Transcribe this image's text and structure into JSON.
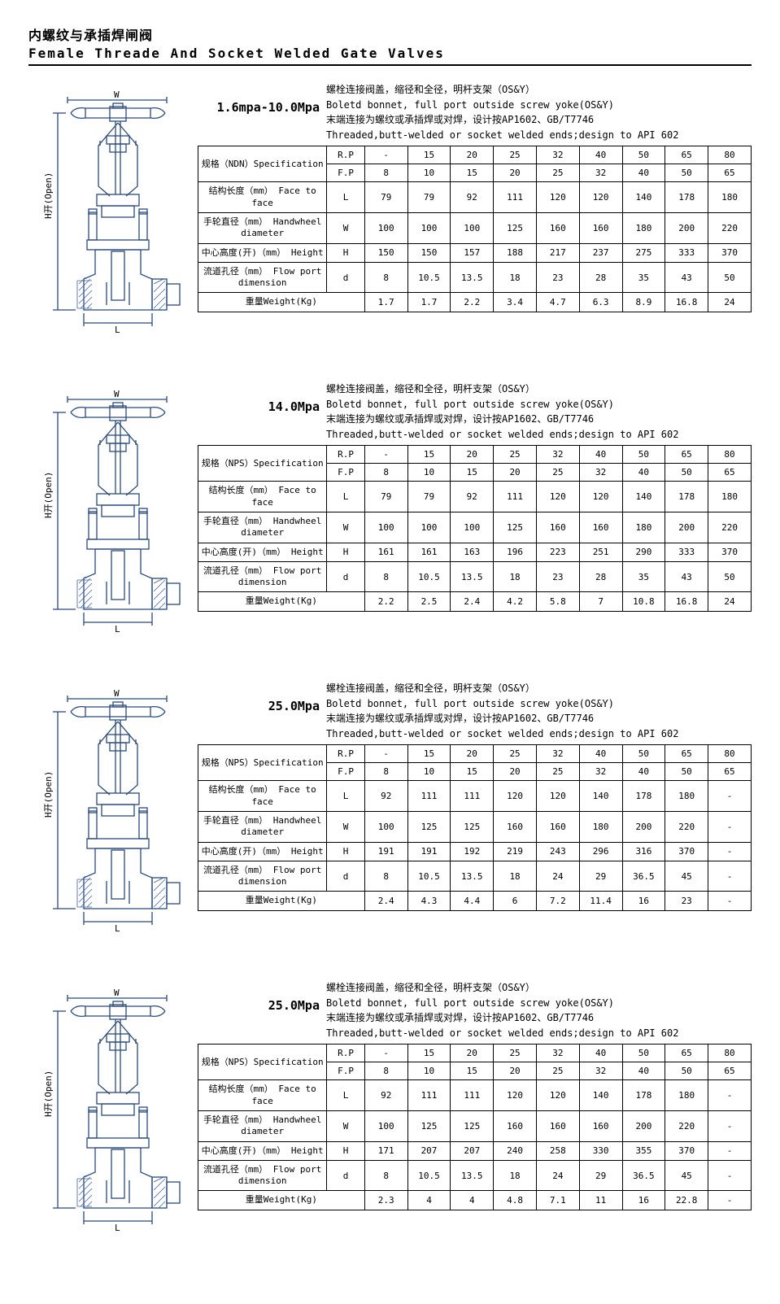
{
  "title_cn": "内螺纹与承插焊闸阀",
  "title_en": "Female Threade And Socket Welded Gate Valves",
  "desc": {
    "l1_cn": "螺栓连接阀盖，缩径和全径，明杆支架（OS&Y）",
    "l1_en": "Boletd bonnet, full port outside screw yoke(OS&Y)",
    "l2_cn": "末端连接为螺纹或承插焊或对焊，设计按AP1602、GB/T7746",
    "l2_en": "Threaded,butt-welded or socket welded ends;design to API 602"
  },
  "diagram": {
    "W": "W",
    "H": "H开(Open)",
    "L": "L"
  },
  "row_labels": {
    "spec_ndn": "规格（NDN）Specification",
    "spec_nps": "规格（NPS）Specification",
    "rp": "R.P",
    "fp": "F.P",
    "face": "结构长度（mm）  Face to face",
    "hand": "手轮直径（mm）  Handwheel diameter",
    "height": "中心高度(开)（mm）  Height",
    "flow": "流道孔径（mm）  Flow port dimension",
    "weight": "重量Weight(Kg)",
    "sym_L": "L",
    "sym_W": "W",
    "sym_H": "H",
    "sym_d": "d"
  },
  "blocks": [
    {
      "pressure": "1.6mpa-10.0Mpa",
      "spec_key": "spec_ndn",
      "rows": {
        "rp": [
          "-",
          "15",
          "20",
          "25",
          "32",
          "40",
          "50",
          "65",
          "80"
        ],
        "fp": [
          "8",
          "10",
          "15",
          "20",
          "25",
          "32",
          "40",
          "50",
          "65"
        ],
        "L": [
          "79",
          "79",
          "92",
          "111",
          "120",
          "120",
          "140",
          "178",
          "180"
        ],
        "W": [
          "100",
          "100",
          "100",
          "125",
          "160",
          "160",
          "180",
          "200",
          "220"
        ],
        "H": [
          "150",
          "150",
          "157",
          "188",
          "217",
          "237",
          "275",
          "333",
          "370"
        ],
        "d": [
          "8",
          "10.5",
          "13.5",
          "18",
          "23",
          "28",
          "35",
          "43",
          "50"
        ],
        "weight": [
          "1.7",
          "1.7",
          "2.2",
          "3.4",
          "4.7",
          "6.3",
          "8.9",
          "16.8",
          "24"
        ]
      }
    },
    {
      "pressure": "14.0Mpa",
      "spec_key": "spec_nps",
      "rows": {
        "rp": [
          "-",
          "15",
          "20",
          "25",
          "32",
          "40",
          "50",
          "65",
          "80"
        ],
        "fp": [
          "8",
          "10",
          "15",
          "20",
          "25",
          "32",
          "40",
          "50",
          "65"
        ],
        "L": [
          "79",
          "79",
          "92",
          "111",
          "120",
          "120",
          "140",
          "178",
          "180"
        ],
        "W": [
          "100",
          "100",
          "100",
          "125",
          "160",
          "160",
          "180",
          "200",
          "220"
        ],
        "H": [
          "161",
          "161",
          "163",
          "196",
          "223",
          "251",
          "290",
          "333",
          "370"
        ],
        "d": [
          "8",
          "10.5",
          "13.5",
          "18",
          "23",
          "28",
          "35",
          "43",
          "50"
        ],
        "weight": [
          "2.2",
          "2.5",
          "2.4",
          "4.2",
          "5.8",
          "7",
          "10.8",
          "16.8",
          "24"
        ]
      }
    },
    {
      "pressure": "25.0Mpa",
      "spec_key": "spec_nps",
      "rows": {
        "rp": [
          "-",
          "15",
          "20",
          "25",
          "32",
          "40",
          "50",
          "65",
          "80"
        ],
        "fp": [
          "8",
          "10",
          "15",
          "20",
          "25",
          "32",
          "40",
          "50",
          "65"
        ],
        "L": [
          "92",
          "111",
          "111",
          "120",
          "120",
          "140",
          "178",
          "180",
          "-"
        ],
        "W": [
          "100",
          "125",
          "125",
          "160",
          "160",
          "180",
          "200",
          "220",
          "-"
        ],
        "H": [
          "191",
          "191",
          "192",
          "219",
          "243",
          "296",
          "316",
          "370",
          "-"
        ],
        "d": [
          "8",
          "10.5",
          "13.5",
          "18",
          "24",
          "29",
          "36.5",
          "45",
          "-"
        ],
        "weight": [
          "2.4",
          "4.3",
          "4.4",
          "6",
          "7.2",
          "11.4",
          "16",
          "23",
          "-"
        ]
      }
    },
    {
      "pressure": "25.0Mpa",
      "spec_key": "spec_nps",
      "rows": {
        "rp": [
          "-",
          "15",
          "20",
          "25",
          "32",
          "40",
          "50",
          "65",
          "80"
        ],
        "fp": [
          "8",
          "10",
          "15",
          "20",
          "25",
          "32",
          "40",
          "50",
          "65"
        ],
        "L": [
          "92",
          "111",
          "111",
          "120",
          "120",
          "140",
          "178",
          "180",
          "-"
        ],
        "W": [
          "100",
          "125",
          "125",
          "160",
          "160",
          "160",
          "200",
          "220",
          "-"
        ],
        "H": [
          "171",
          "207",
          "207",
          "240",
          "258",
          "330",
          "355",
          "370",
          "-"
        ],
        "d": [
          "8",
          "10.5",
          "13.5",
          "18",
          "24",
          "29",
          "36.5",
          "45",
          "-"
        ],
        "weight": [
          "2.3",
          "4",
          "4",
          "4.8",
          "7.1",
          "11",
          "16",
          "22.8",
          "-"
        ]
      }
    }
  ],
  "style": {
    "stroke": "#2a4a7a",
    "stroke_hatch": "#4060a0",
    "text_color": "#000000"
  }
}
